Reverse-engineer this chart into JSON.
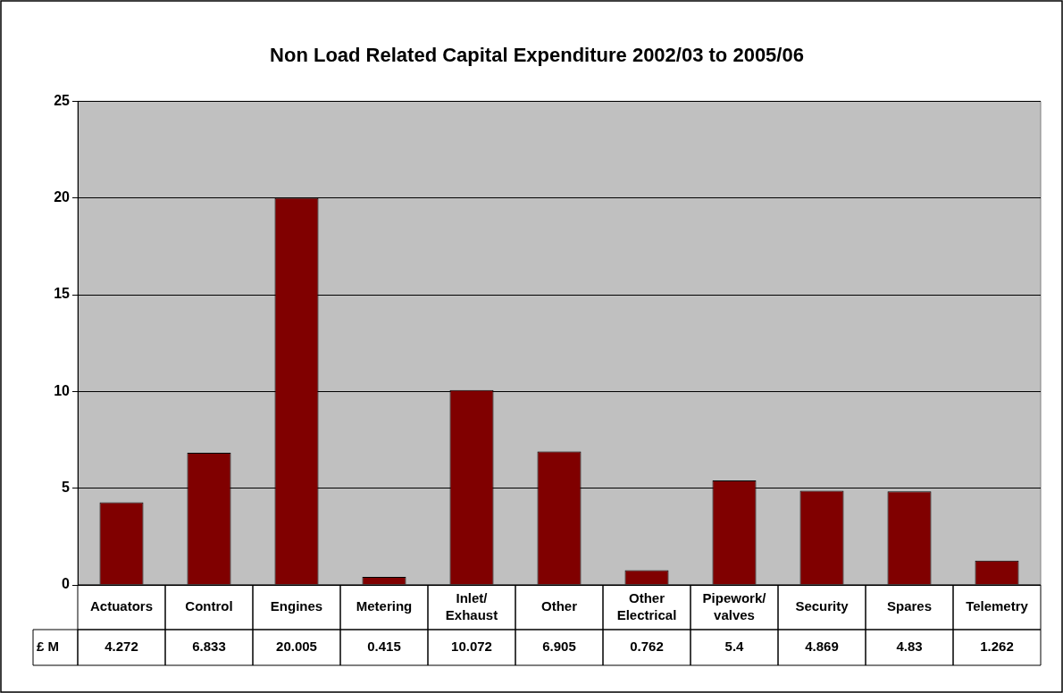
{
  "chart_data": {
    "type": "bar",
    "title": "Non Load Related Capital Expenditure 2002/03 to 2005/06",
    "categories": [
      "Actuators",
      "Control",
      "Engines",
      "Metering",
      "Inlet/Exhaust",
      "Other",
      "Other Electrical",
      "Pipework/valves",
      "Security",
      "Spares",
      "Telemetry"
    ],
    "series": [
      {
        "name": "£ M",
        "color": "#800000",
        "values": [
          4.272,
          6.833,
          20.005,
          0.415,
          10.072,
          6.905,
          0.762,
          5.4,
          4.869,
          4.83,
          1.262
        ]
      }
    ],
    "ylim": [
      0,
      25
    ],
    "yticks": [
      0,
      5,
      10,
      15,
      20,
      25
    ],
    "grid": "y",
    "legend": false,
    "data_labels": true
  }
}
